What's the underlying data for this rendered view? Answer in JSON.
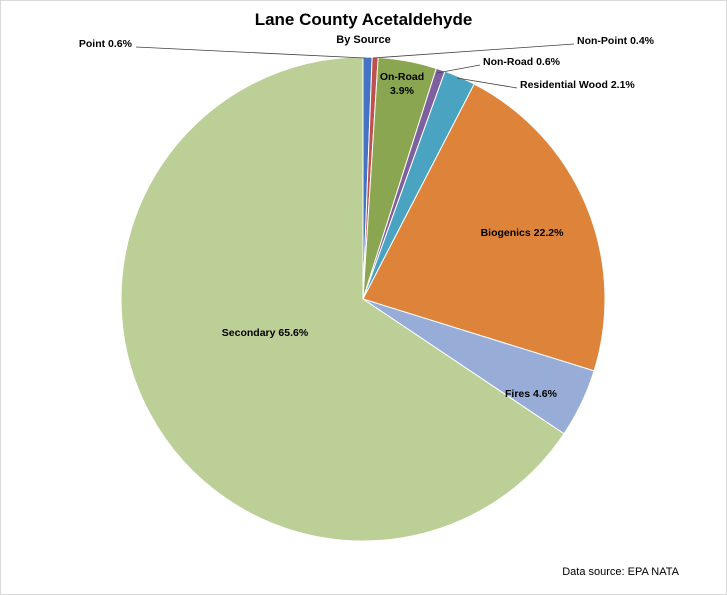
{
  "chart_data": {
    "type": "pie",
    "title": "Lane County Acetaldehyde",
    "subtitle": "By Source",
    "source_note": "Data source: EPA NATA",
    "slices": [
      {
        "label": "Point",
        "value": 0.6,
        "display": "Point 0.6%",
        "color": "#4472c4"
      },
      {
        "label": "Non-Point",
        "value": 0.4,
        "display": "Non-Point 0.4%",
        "color": "#c0504d"
      },
      {
        "label": "On-Road",
        "value": 3.9,
        "display": "On-Road 3.9%",
        "color": "#8aa650"
      },
      {
        "label": "Non-Road",
        "value": 0.6,
        "display": "Non-Road 0.6%",
        "color": "#7e5f9f"
      },
      {
        "label": "Residential Wood",
        "value": 2.1,
        "display": "Residential Wood  2.1%",
        "color": "#4aa3c0"
      },
      {
        "label": "Biogenics",
        "value": 22.2,
        "display": "Biogenics 22.2%",
        "color": "#de833a"
      },
      {
        "label": "Fires",
        "value": 4.6,
        "display": "Fires 4.6%",
        "color": "#98acd8"
      },
      {
        "label": "Secondary",
        "value": 65.6,
        "display": "Secondary 65.6%",
        "color": "#bbcf97"
      }
    ]
  }
}
